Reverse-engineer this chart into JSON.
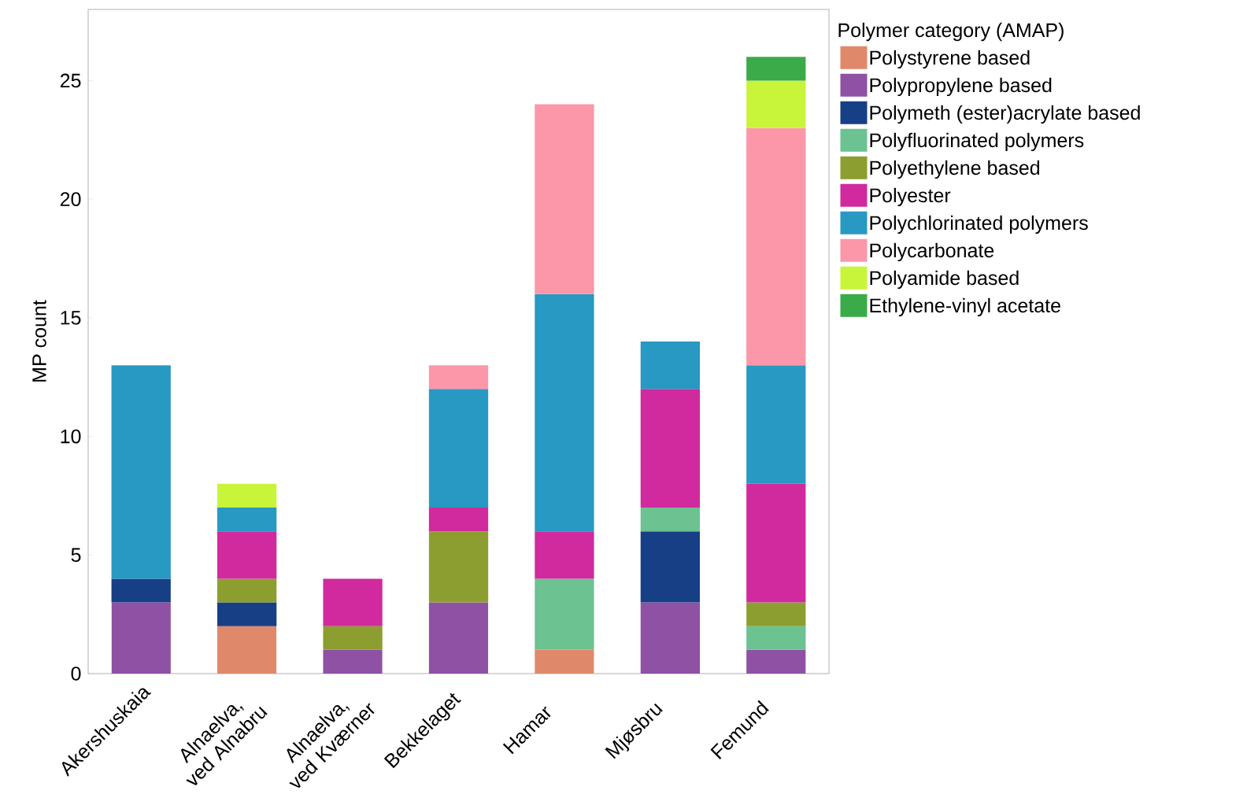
{
  "chart_data": {
    "type": "bar",
    "stacked": true,
    "ylabel": "MP count",
    "legend_title": "Polymer category (AMAP)",
    "legend": "top right",
    "categories": [
      "Akershuskaia",
      "Alnaelva, ved Alnabru",
      "Alnaelva, ved Kværner",
      "Bekkelaget",
      "Hamar",
      "Mjøsbru",
      "Femund"
    ],
    "ylim": [
      0,
      28
    ],
    "yticks": [
      0,
      5,
      10,
      15,
      20,
      25
    ],
    "grid": false,
    "series": [
      {
        "name": "Polystyrene based",
        "color": "#e0896a",
        "values": [
          null,
          2,
          null,
          null,
          1,
          null,
          null
        ]
      },
      {
        "name": "Polypropylene based",
        "color": "#8e51a4",
        "values": [
          3,
          null,
          1,
          3,
          null,
          3,
          1
        ]
      },
      {
        "name": "Polymeth (ester)acrylate based",
        "color": "#173f86",
        "values": [
          1,
          1,
          null,
          null,
          null,
          3,
          null
        ]
      },
      {
        "name": "Polyfluorinated polymers",
        "color": "#6cc291",
        "values": [
          null,
          null,
          null,
          null,
          3,
          1,
          1
        ]
      },
      {
        "name": "Polyethylene based",
        "color": "#8c9e2f",
        "values": [
          null,
          1,
          1,
          3,
          null,
          null,
          1
        ]
      },
      {
        "name": "Polyester",
        "color": "#d02a9e",
        "values": [
          null,
          2,
          2,
          1,
          2,
          5,
          5
        ]
      },
      {
        "name": "Polychlorinated polymers",
        "color": "#2899c2",
        "values": [
          9,
          1,
          null,
          5,
          10,
          2,
          5
        ]
      },
      {
        "name": "Polycarbonate",
        "color": "#fb97a8",
        "values": [
          null,
          null,
          null,
          1,
          8,
          null,
          10
        ]
      },
      {
        "name": "Polyamide based",
        "color": "#c8f53a",
        "values": [
          null,
          1,
          null,
          null,
          null,
          null,
          2
        ]
      },
      {
        "name": "Ethylene-vinyl acetate",
        "color": "#3aab48",
        "values": [
          null,
          null,
          null,
          null,
          null,
          null,
          1
        ]
      }
    ]
  }
}
